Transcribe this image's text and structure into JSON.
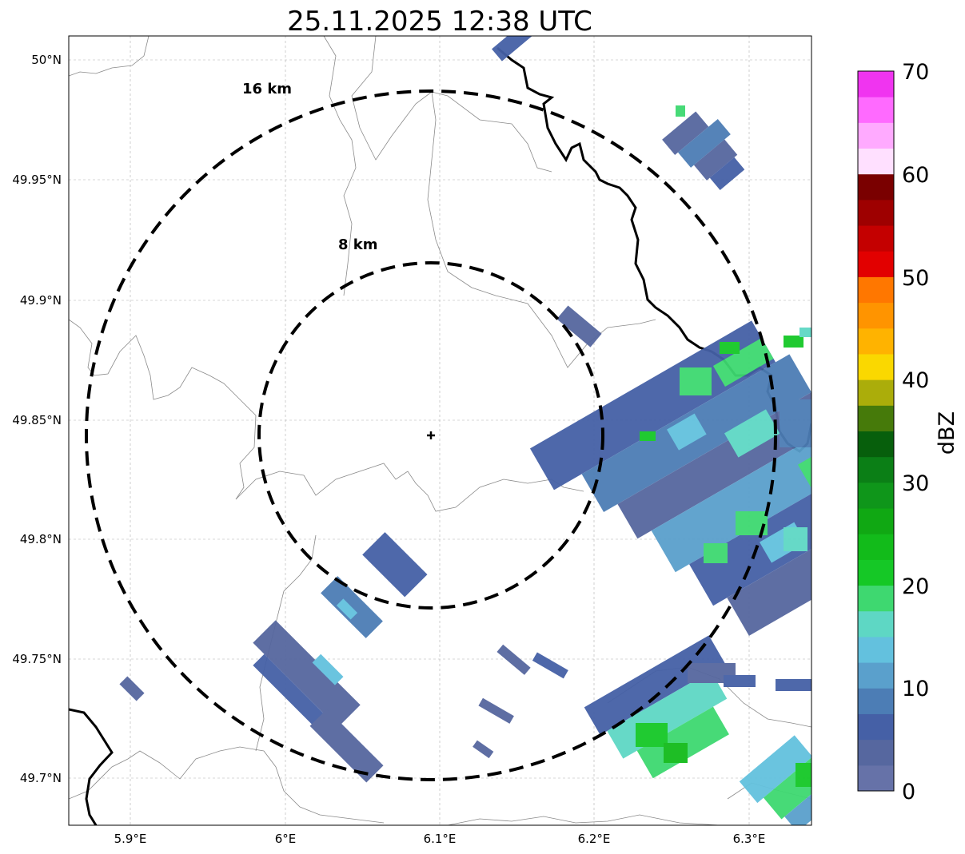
{
  "title": "25.11.2025 12:38 UTC",
  "colorbar": {
    "label": "dBZ",
    "ticks": [
      "0",
      "10",
      "20",
      "30",
      "40",
      "50",
      "60",
      "70"
    ],
    "colors": [
      "#6672a8",
      "#56679f",
      "#4560a6",
      "#4c7db5",
      "#5aa0cc",
      "#63c1de",
      "#5ed7c4",
      "#3ed870",
      "#15c826",
      "#12bb1a",
      "#10a813",
      "#0f961a",
      "#0b7f16",
      "#075f0c",
      "#467a0a",
      "#abad0a",
      "#fad800",
      "#ffb300",
      "#ff9400",
      "#ff7700",
      "#e20000",
      "#c40000",
      "#9e0000",
      "#7a0000",
      "#ffe0ff",
      "#ffaaff",
      "#ff6aff",
      "#f034f0"
    ]
  },
  "axes": {
    "x_ticks": [
      "5.9°E",
      "6°E",
      "6.1°E",
      "6.2°E",
      "6.3°E"
    ],
    "y_ticks": [
      "50°N",
      "49.95°N",
      "49.9°N",
      "49.85°N",
      "49.8°N",
      "49.75°N",
      "49.7°N"
    ],
    "grid": true,
    "lon_range": [
      5.86,
      6.34
    ],
    "lat_range": [
      49.68,
      50.01
    ]
  },
  "radar": {
    "center_lon": 6.095,
    "center_lat": 49.843,
    "rings": [
      {
        "label": "8 km",
        "radius_km": 8
      },
      {
        "label": "16 km",
        "radius_km": 16
      }
    ]
  }
}
